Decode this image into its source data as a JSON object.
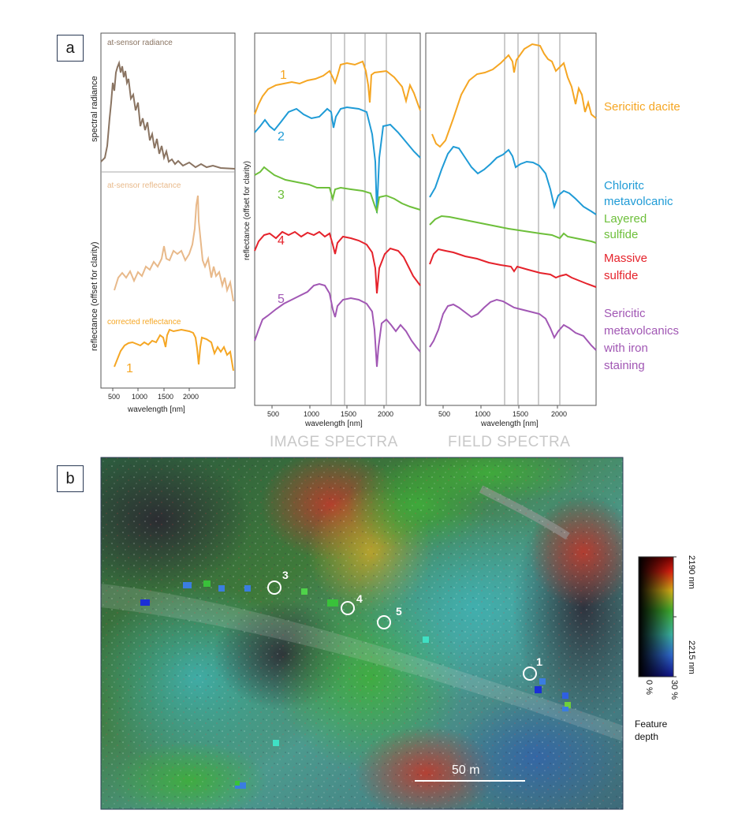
{
  "panel_a": {
    "letter": "a",
    "left_column": {
      "sub1_label": "at-sensor radiance",
      "sub1_ylabel": "spectral radiance",
      "sub2_label": "at-sensor reflectance",
      "sub3_label": "corrected reflectance",
      "ylabel": "reflectance (offset for clarity)",
      "curve_number": "1",
      "xlabel": "wavelength [nm]",
      "xticks": [
        "500",
        "1000",
        "1500",
        "2000"
      ]
    },
    "image_spectra": {
      "ylabel": "reflectance (offset for clarity)",
      "xlabel": "wavelength [nm]",
      "xticks": [
        "500",
        "1000",
        "1500",
        "2000"
      ],
      "numbers": [
        "1",
        "2",
        "3",
        "4",
        "5"
      ],
      "caption": "IMAGE SPECTRA"
    },
    "field_spectra": {
      "xlabel": "wavelength [nm]",
      "xticks": [
        "500",
        "1000",
        "1500",
        "2000"
      ],
      "caption": "FIELD SPECTRA"
    },
    "legend": [
      {
        "lines": [
          "Sericitic dacite"
        ],
        "color": "#f5a623"
      },
      {
        "lines": [
          "Chloritc",
          "metavolcanic"
        ],
        "color": "#1f9bd6"
      },
      {
        "lines": [
          "Layered",
          "sulfide"
        ],
        "color": "#6dbf3a"
      },
      {
        "lines": [
          "Massive",
          "sulfide"
        ],
        "color": "#e5222b"
      },
      {
        "lines": [
          "Sericitic",
          "metavolcanics",
          "with iron",
          "staining"
        ],
        "color": "#a157b4"
      }
    ]
  },
  "panel_b": {
    "letter": "b",
    "site_labels": [
      "3",
      "4",
      "5",
      "1"
    ],
    "scale_bar": "50 m",
    "colorbar": {
      "top": "2190 nm",
      "bottom": "2215 nm",
      "depth_min": "0 %",
      "depth_max": "30 %",
      "title_lines": [
        "Feature",
        "depth"
      ]
    }
  },
  "colors": {
    "radiance": "#8a7462",
    "reflectance_raw": "#e8b98a",
    "reflectance_corrected": "#f5a623",
    "frame": "#555555",
    "caption": "#c8c8c8",
    "panel_label_border": "#2b3a55"
  }
}
